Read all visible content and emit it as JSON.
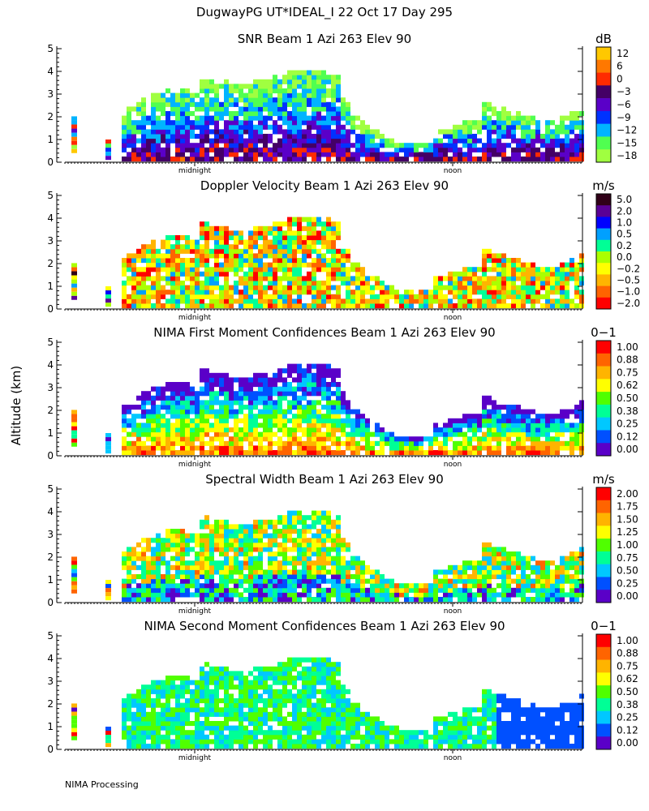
{
  "header": {
    "title": "DugwayPG UT*IDEAL_I  22 Oct 17 Day 295",
    "y_axis_label": "Altitude (km)",
    "footer": "NIMA Processing"
  },
  "chart_data": [
    {
      "type": "heatmap",
      "title": "SNR Beam 1 Azi 263 Elev 90",
      "xlabel": "",
      "ylabel": "Altitude (km)",
      "ylim": [
        0,
        5
      ],
      "yticks": [
        "0",
        "1",
        "2",
        "3",
        "4",
        "5"
      ],
      "xtick_labels": [
        "midnight",
        "noon"
      ],
      "unit": "dB",
      "legend": {
        "labels": [
          "12",
          "6",
          "0",
          "−3",
          "−6",
          "−9",
          "−12",
          "−15",
          "−18"
        ],
        "colors": [
          "#ffc800",
          "#ff7800",
          "#ff2a00",
          "#440066",
          "#5a00c8",
          "#0032ff",
          "#00b4ff",
          "#50ff50",
          "#a0ff40"
        ]
      }
    },
    {
      "type": "heatmap",
      "title": "Doppler Velocity Beam 1 Azi 263 Elev 90",
      "xlabel": "",
      "ylabel": "Altitude (km)",
      "ylim": [
        0,
        5
      ],
      "yticks": [
        "0",
        "1",
        "2",
        "3",
        "4",
        "5"
      ],
      "xtick_labels": [
        "midnight",
        "noon"
      ],
      "unit": "m/s",
      "legend": {
        "labels": [
          "5.0",
          "2.0",
          "1.0",
          "0.5",
          "0.2",
          "0.0",
          "−0.2",
          "−0.5",
          "−1.0",
          "−2.0"
        ],
        "colors": [
          "#300018",
          "#5a0096",
          "#0000ff",
          "#00a0ff",
          "#00ff96",
          "#aaff00",
          "#ffff00",
          "#ffb400",
          "#ff6400",
          "#ff0000"
        ]
      }
    },
    {
      "type": "heatmap",
      "title": "NIMA First Moment Confidences Beam 1 Azi 263 Elev 90",
      "xlabel": "",
      "ylabel": "Altitude (km)",
      "ylim": [
        0,
        5
      ],
      "yticks": [
        "0",
        "1",
        "2",
        "3",
        "4",
        "5"
      ],
      "xtick_labels": [
        "midnight",
        "noon"
      ],
      "unit": "0−1",
      "legend": {
        "labels": [
          "1.00",
          "0.88",
          "0.75",
          "0.62",
          "0.50",
          "0.38",
          "0.25",
          "0.12",
          "0.00"
        ],
        "colors": [
          "#ff0000",
          "#ff6400",
          "#ffb400",
          "#ffff00",
          "#50ff00",
          "#00ff96",
          "#00c8ff",
          "#0050ff",
          "#5a00c8"
        ]
      }
    },
    {
      "type": "heatmap",
      "title": "Spectral Width Beam 1 Azi 263 Elev 90",
      "xlabel": "",
      "ylabel": "Altitude (km)",
      "ylim": [
        0,
        5
      ],
      "yticks": [
        "0",
        "1",
        "2",
        "3",
        "4",
        "5"
      ],
      "xtick_labels": [
        "midnight",
        "noon"
      ],
      "unit": "m/s",
      "legend": {
        "labels": [
          "2.00",
          "1.75",
          "1.50",
          "1.25",
          "1.00",
          "0.75",
          "0.50",
          "0.25",
          "0.00"
        ],
        "colors": [
          "#ff0000",
          "#ff6400",
          "#ffb400",
          "#ffff00",
          "#50ff00",
          "#00ff96",
          "#00c8ff",
          "#0050ff",
          "#5a00c8"
        ]
      }
    },
    {
      "type": "heatmap",
      "title": "NIMA Second Moment Confidences Beam 1 Azi 263 Elev 90",
      "xlabel": "",
      "ylabel": "Altitude (km)",
      "ylim": [
        0,
        5
      ],
      "yticks": [
        "0",
        "1",
        "2",
        "3",
        "4",
        "5"
      ],
      "xtick_labels": [
        "midnight",
        "noon"
      ],
      "unit": "0−1",
      "legend": {
        "labels": [
          "1.00",
          "0.88",
          "0.75",
          "0.62",
          "0.50",
          "0.38",
          "0.25",
          "0.12",
          "0.00"
        ],
        "colors": [
          "#ff0000",
          "#ff6400",
          "#ffb400",
          "#ffff00",
          "#50ff00",
          "#00ff96",
          "#00c8ff",
          "#0050ff",
          "#5a00c8"
        ]
      }
    }
  ]
}
